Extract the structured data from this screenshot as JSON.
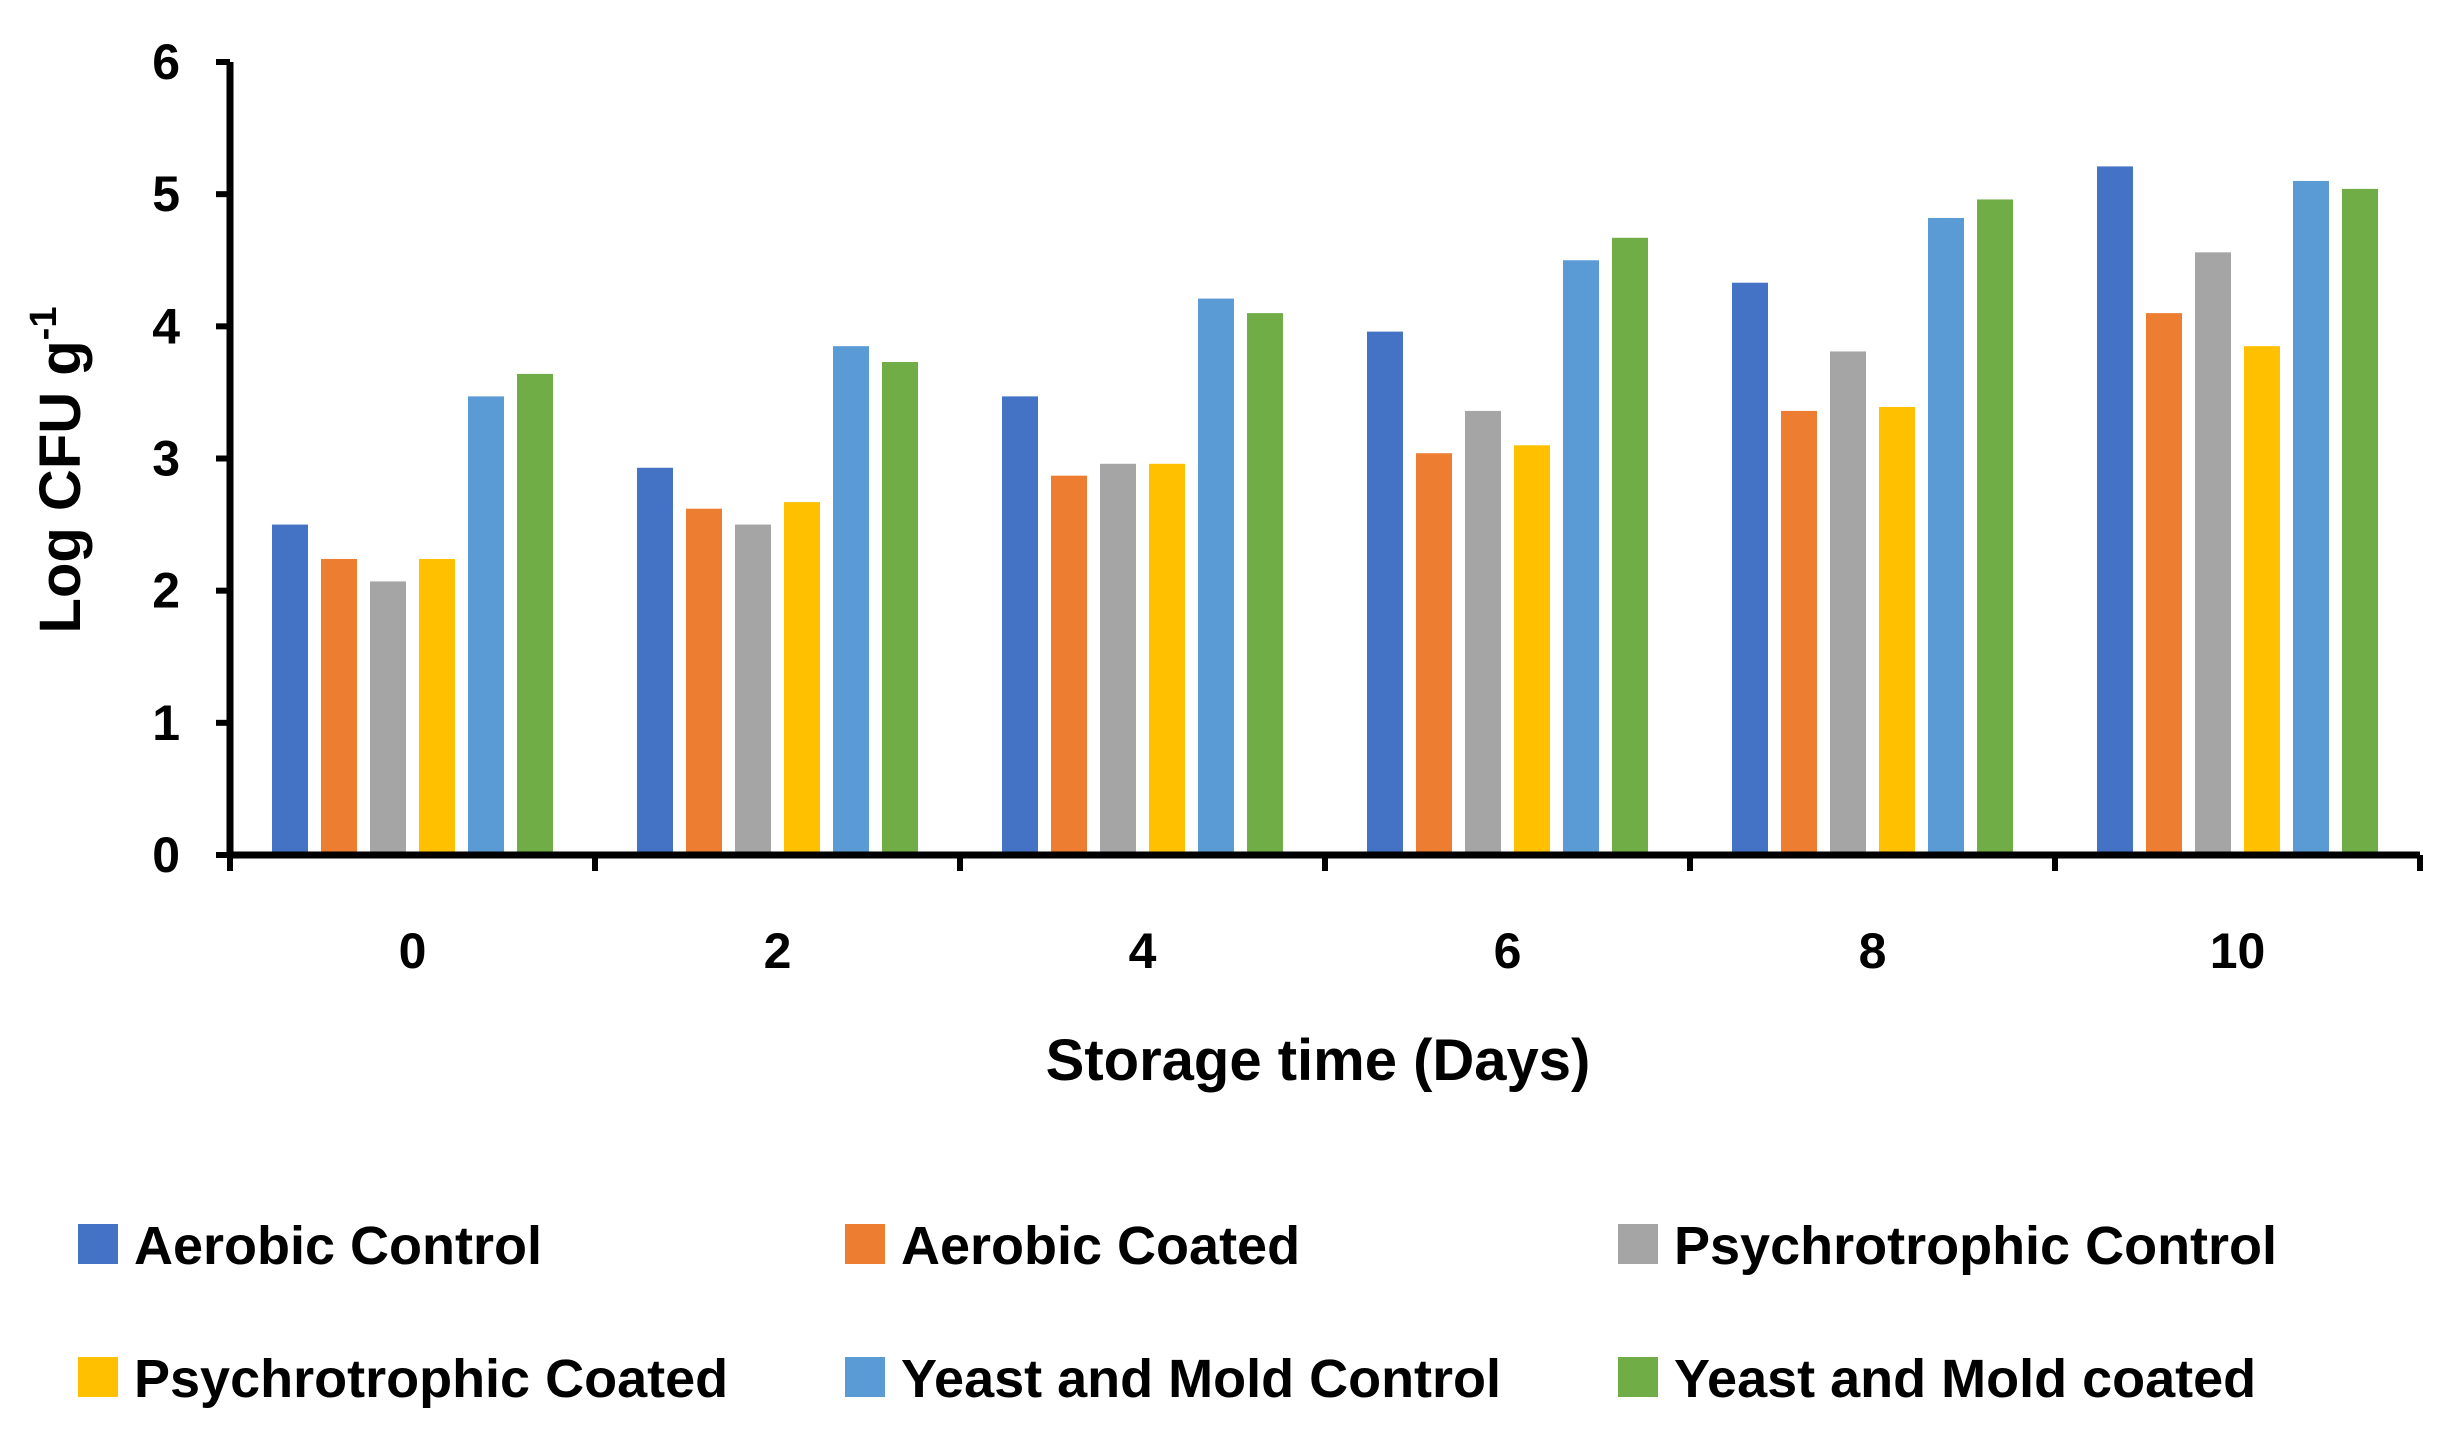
{
  "chart_data": {
    "type": "bar",
    "title": "",
    "xlabel": "Storage time (Days)",
    "ylabel": {
      "main": "Log CFU g",
      "superscript": "-1"
    },
    "categories": [
      "0",
      "2",
      "4",
      "6",
      "8",
      "10"
    ],
    "ylim": [
      0,
      6
    ],
    "yticks": [
      0,
      1,
      2,
      3,
      4,
      5,
      6
    ],
    "grid": false,
    "legend_position": "bottom",
    "series": [
      {
        "name": "Aerobic Control",
        "color": "#4472C4",
        "values": [
          2.5,
          2.93,
          3.47,
          3.96,
          4.33,
          5.21
        ]
      },
      {
        "name": "Aerobic Coated",
        "color": "#ED7D31",
        "values": [
          2.24,
          2.62,
          2.87,
          3.04,
          3.36,
          4.1
        ]
      },
      {
        "name": "Psychrotrophic Control",
        "color": "#A5A5A5",
        "values": [
          2.07,
          2.5,
          2.96,
          3.36,
          3.81,
          4.56
        ]
      },
      {
        "name": "Psychrotrophic Coated",
        "color": "#FFC000",
        "values": [
          2.24,
          2.67,
          2.96,
          3.1,
          3.39,
          3.85
        ]
      },
      {
        "name": "Yeast and Mold Control",
        "color": "#5B9BD5",
        "values": [
          3.47,
          3.85,
          4.21,
          4.5,
          4.82,
          5.1
        ]
      },
      {
        "name": "Yeast and Mold coated",
        "color": "#70AD47",
        "values": [
          3.64,
          3.73,
          4.1,
          4.67,
          4.96,
          5.04
        ]
      }
    ]
  }
}
